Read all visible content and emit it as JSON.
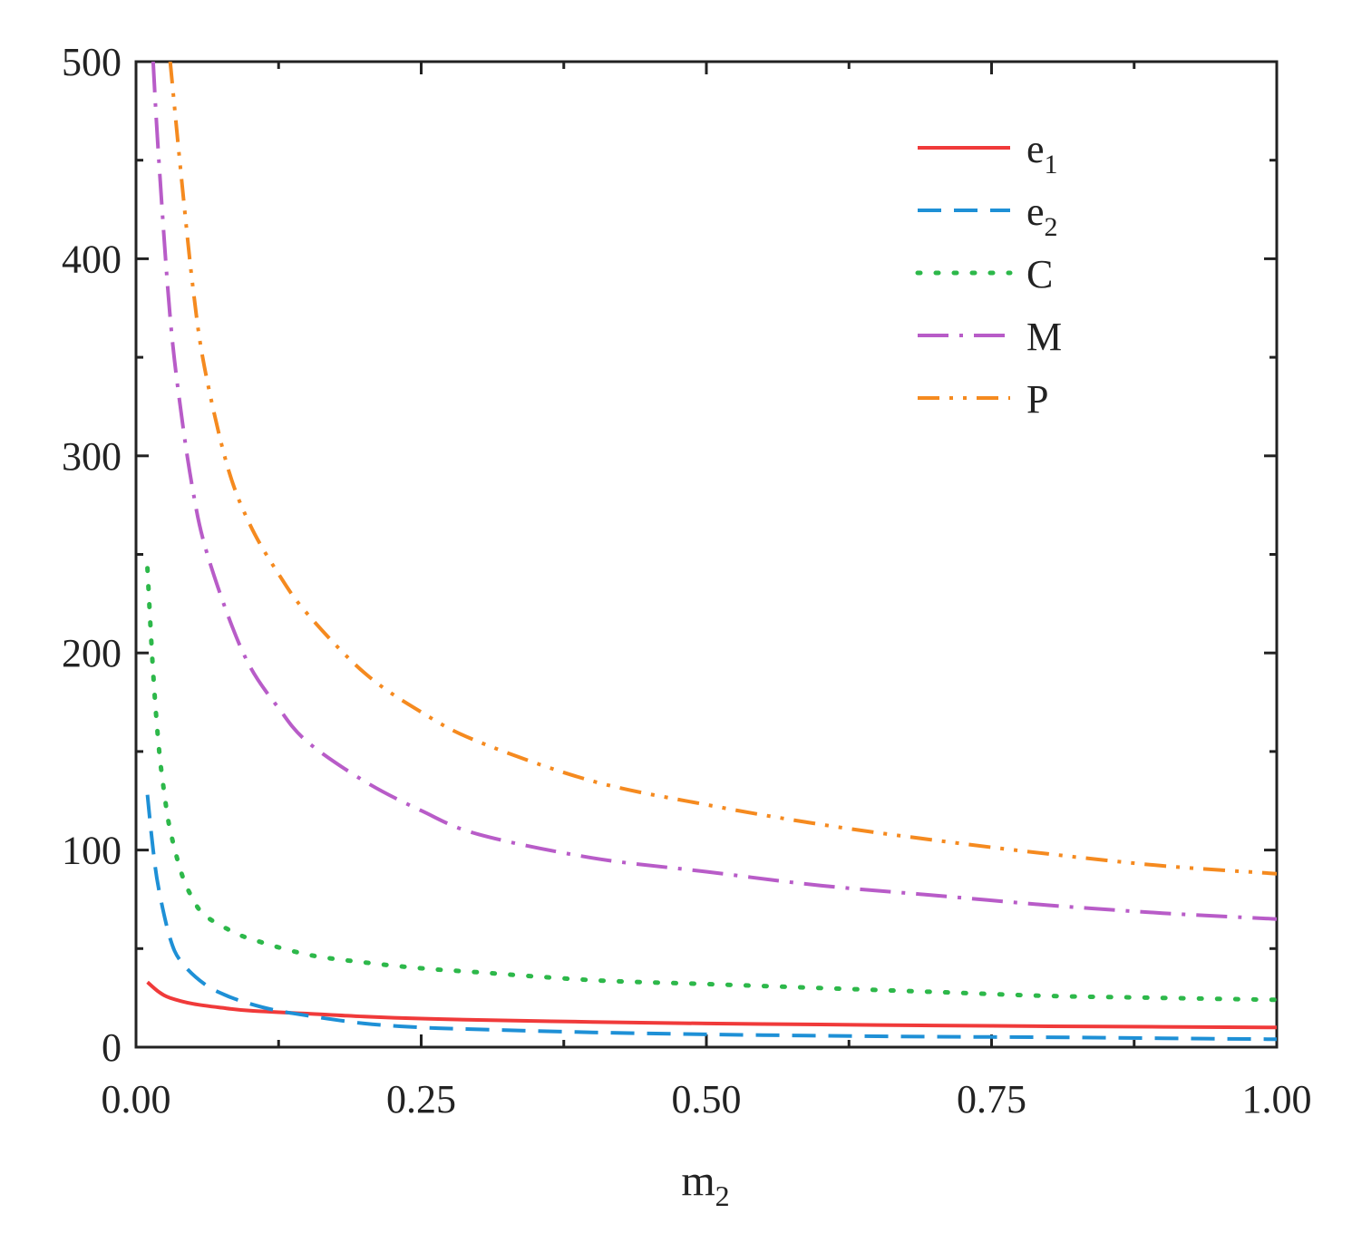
{
  "chart_data": {
    "type": "line",
    "title": "",
    "xlabel": "m",
    "xlabel_sub": "2",
    "ylabel": "",
    "xlim": [
      0,
      1
    ],
    "ylim": [
      0,
      500
    ],
    "x_ticks": [
      "0.00",
      "0.25",
      "0.50",
      "0.75",
      "1.00"
    ],
    "y_ticks": [
      "0",
      "100",
      "200",
      "300",
      "400",
      "500"
    ],
    "grid": false,
    "legend_position": "top-right",
    "series": [
      {
        "name": "e",
        "name_sub": "1",
        "color": "#f03a3a",
        "dash": "solid",
        "x": [
          0.01,
          0.02,
          0.03,
          0.05,
          0.075,
          0.1,
          0.15,
          0.2,
          0.25,
          0.3,
          0.4,
          0.5,
          0.6,
          0.7,
          0.8,
          0.9,
          1.0
        ],
        "y": [
          33,
          28,
          25,
          22,
          20,
          18.5,
          17,
          15.5,
          14.5,
          13.8,
          12.8,
          12,
          11.5,
          11,
          10.6,
          10.3,
          10
        ]
      },
      {
        "name": "e",
        "name_sub": "2",
        "color": "#1e90d6",
        "dash": "dashed",
        "x": [
          0.01,
          0.015,
          0.02,
          0.03,
          0.04,
          0.06,
          0.08,
          0.1,
          0.12,
          0.15,
          0.2,
          0.25,
          0.3,
          0.4,
          0.5,
          0.6,
          0.7,
          0.8,
          0.9,
          1.0
        ],
        "y": [
          128,
          100,
          80,
          55,
          43,
          32,
          26,
          22,
          19,
          16,
          12,
          10,
          9,
          7.5,
          6.5,
          5.8,
          5.3,
          5,
          4.5,
          4
        ]
      },
      {
        "name": "C",
        "color": "#2db84a",
        "dash": "dotted",
        "x": [
          0.01,
          0.015,
          0.02,
          0.025,
          0.03,
          0.04,
          0.05,
          0.06,
          0.08,
          0.1,
          0.15,
          0.2,
          0.25,
          0.3,
          0.4,
          0.5,
          0.6,
          0.7,
          0.8,
          0.9,
          1.0
        ],
        "y": [
          243,
          190,
          152,
          128,
          110,
          88,
          75,
          67,
          60,
          55,
          47,
          43,
          40,
          38,
          34,
          32,
          30,
          28,
          26,
          25,
          24
        ]
      },
      {
        "name": "M",
        "color": "#b85cc8",
        "dash": "dashdot",
        "x": [
          0.015,
          0.02,
          0.03,
          0.04,
          0.05,
          0.06,
          0.08,
          0.1,
          0.125,
          0.15,
          0.2,
          0.25,
          0.3,
          0.4,
          0.5,
          0.6,
          0.7,
          0.8,
          0.9,
          1.0
        ],
        "y": [
          500,
          450,
          370,
          320,
          282,
          255,
          220,
          193,
          172,
          155,
          135,
          120,
          108,
          96,
          89,
          82,
          77,
          72,
          68,
          65
        ]
      },
      {
        "name": "P",
        "color": "#f58a1f",
        "dash": "dashdotdot",
        "x": [
          0.03,
          0.04,
          0.05,
          0.06,
          0.08,
          0.1,
          0.125,
          0.15,
          0.2,
          0.25,
          0.3,
          0.4,
          0.5,
          0.6,
          0.7,
          0.8,
          0.9,
          1.0
        ],
        "y": [
          500,
          440,
          385,
          345,
          295,
          265,
          240,
          220,
          190,
          170,
          155,
          135,
          123,
          113,
          105,
          98,
          92,
          88
        ]
      }
    ]
  }
}
